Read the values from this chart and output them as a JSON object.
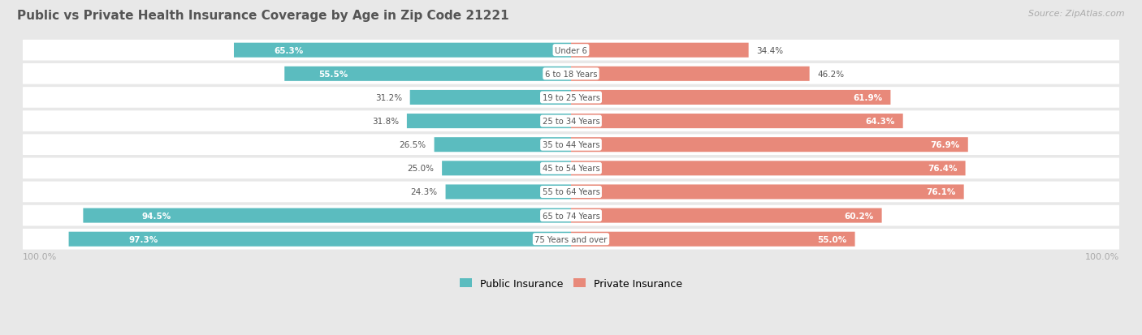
{
  "title": "Public vs Private Health Insurance Coverage by Age in Zip Code 21221",
  "source": "Source: ZipAtlas.com",
  "categories": [
    "Under 6",
    "6 to 18 Years",
    "19 to 25 Years",
    "25 to 34 Years",
    "35 to 44 Years",
    "45 to 54 Years",
    "55 to 64 Years",
    "65 to 74 Years",
    "75 Years and over"
  ],
  "public_values": [
    65.3,
    55.5,
    31.2,
    31.8,
    26.5,
    25.0,
    24.3,
    94.5,
    97.3
  ],
  "private_values": [
    34.4,
    46.2,
    61.9,
    64.3,
    76.9,
    76.4,
    76.1,
    60.2,
    55.0
  ],
  "public_color": "#5bbcbf",
  "private_color": "#e8897a",
  "bg_color": "#e8e8e8",
  "row_bg_color": "#f5f5f5",
  "row_bg_alt": "#ebebeb",
  "title_color": "#555555",
  "label_color_dark": "#555555",
  "label_color_white": "#ffffff",
  "axis_label_color": "#aaaaaa",
  "bar_height": 0.62,
  "figsize": [
    14.06,
    4.14
  ],
  "dpi": 100
}
